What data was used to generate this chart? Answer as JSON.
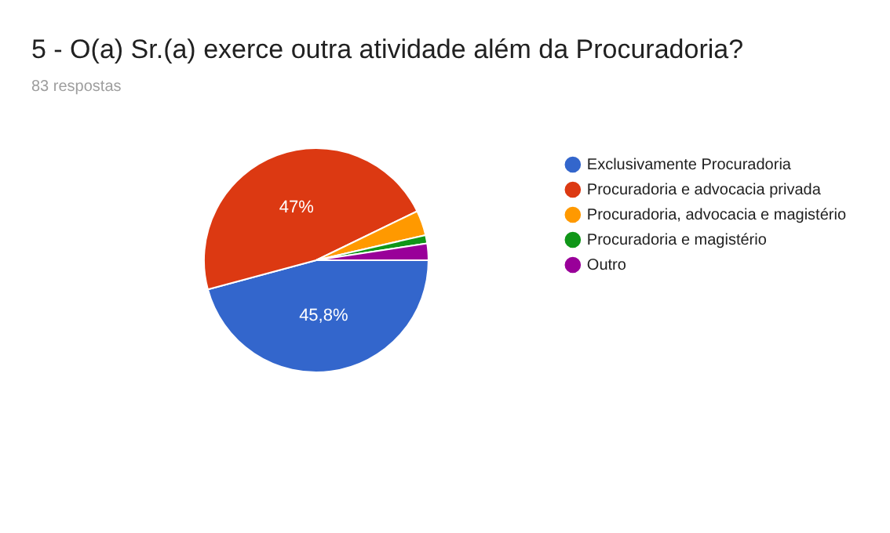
{
  "chart_data": {
    "type": "pie",
    "title": "5 - O(a) Sr.(a) exerce outra atividade além da Procuradoria?",
    "subtitle": "83 respostas",
    "categories": [
      "Exclusivamente Procuradoria",
      "Procuradoria e advocacia privada",
      "Procuradoria, advocacia e magistério",
      "Procuradoria e magistério",
      "Outro"
    ],
    "values": [
      45.8,
      47,
      3.6,
      1.2,
      2.4
    ],
    "colors": [
      "#3366cc",
      "#dc3912",
      "#ff9900",
      "#109618",
      "#990099"
    ],
    "value_labels": [
      "45,8%",
      "47%",
      null,
      null,
      null
    ],
    "legend": "right"
  }
}
